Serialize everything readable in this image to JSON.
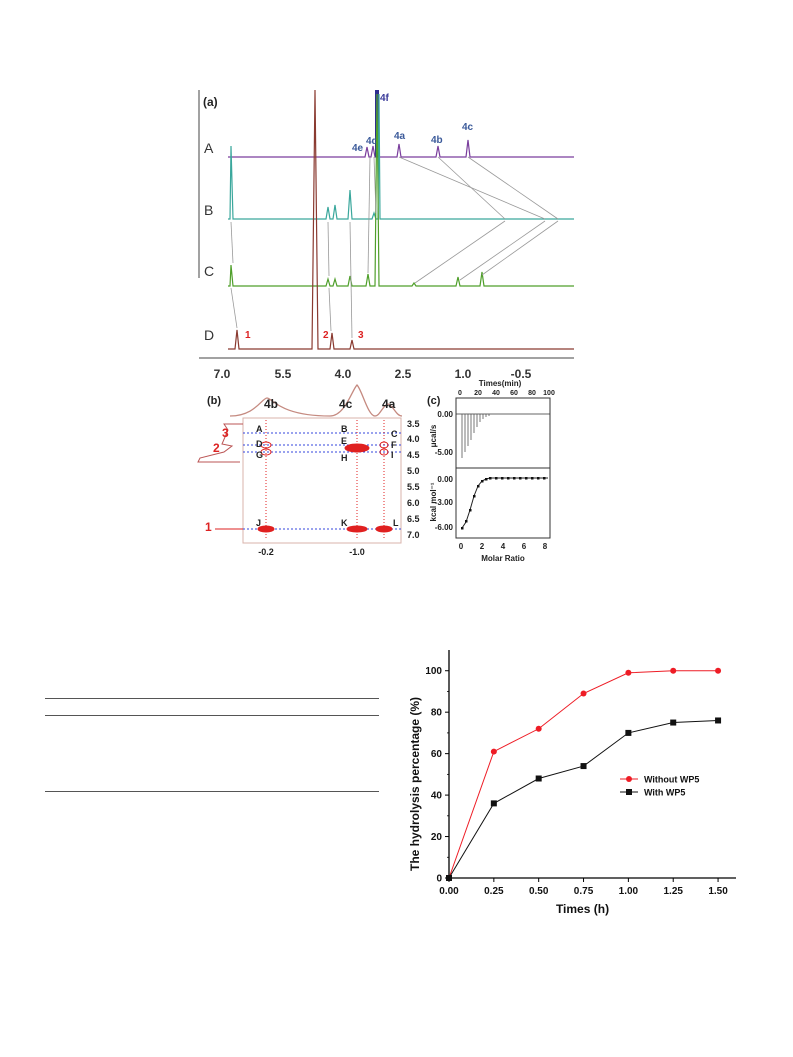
{
  "nmr_figure": {
    "panel_a_label": "(a)",
    "panel_b_label": "(b)",
    "panel_c_label": "(c)",
    "trace_labels": [
      "A",
      "B",
      "C",
      "D"
    ],
    "guest_peak_labels": [
      "1",
      "2",
      "3"
    ],
    "host_peak_labels": [
      "4f",
      "4e",
      "4d",
      "4a",
      "4b",
      "4c"
    ],
    "ppm_ticks": [
      "7.0",
      "5.5",
      "4.0",
      "2.5",
      "1.0",
      "-0.5"
    ],
    "noesy_top_labels": [
      "4b",
      "4c",
      "4a"
    ],
    "noesy_left_labels": [
      "3",
      "2",
      "1"
    ],
    "noesy_cross_labels": [
      "A",
      "B",
      "C",
      "D",
      "E",
      "F",
      "G",
      "H",
      "I",
      "J",
      "K",
      "L"
    ],
    "noesy_bottom_ticks": [
      "-0.2",
      "-1.0"
    ],
    "itc_top_axis_title": "Times(min)",
    "itc_top_ticks": [
      "0",
      "20",
      "40",
      "60",
      "80",
      "100"
    ],
    "itc_upper_yticks": [
      "0.00",
      "-5.00"
    ],
    "itc_upper_ylabel": "μcal/s",
    "itc_lower_yticks": [
      "0.00",
      "-3.00",
      "-6.00"
    ],
    "itc_lower_ylabel": "kcal mol⁻¹",
    "itc_bottom_ticks": [
      "0",
      "2",
      "4",
      "6",
      "8"
    ],
    "itc_xlabel": "Molar Ratio",
    "noesy_right_ticks": [
      "3.5",
      "4.0",
      "4.5",
      "5.0",
      "5.5",
      "6.0",
      "6.5",
      "7.0"
    ]
  },
  "chart_data": {
    "type": "line",
    "xlabel": "Times (h)",
    "ylabel": "The hydrolysis percentage (%)",
    "x": [
      0.0,
      0.25,
      0.5,
      0.75,
      1.0,
      1.25,
      1.5
    ],
    "xticks": [
      "0.00",
      "0.25",
      "0.50",
      "0.75",
      "1.00",
      "1.25",
      "1.50"
    ],
    "yticks": [
      "0",
      "20",
      "40",
      "60",
      "80",
      "100"
    ],
    "xlim": [
      0,
      1.6
    ],
    "ylim": [
      0,
      110
    ],
    "legend_position": "right",
    "series": [
      {
        "name": "Without WP5",
        "color": "#ee1c25",
        "marker": "circle",
        "values": [
          0,
          61,
          72,
          89,
          99,
          100,
          100
        ]
      },
      {
        "name": "With WP5",
        "color": "#111111",
        "marker": "square",
        "values": [
          0,
          36,
          48,
          54,
          70,
          75,
          76
        ]
      }
    ]
  }
}
